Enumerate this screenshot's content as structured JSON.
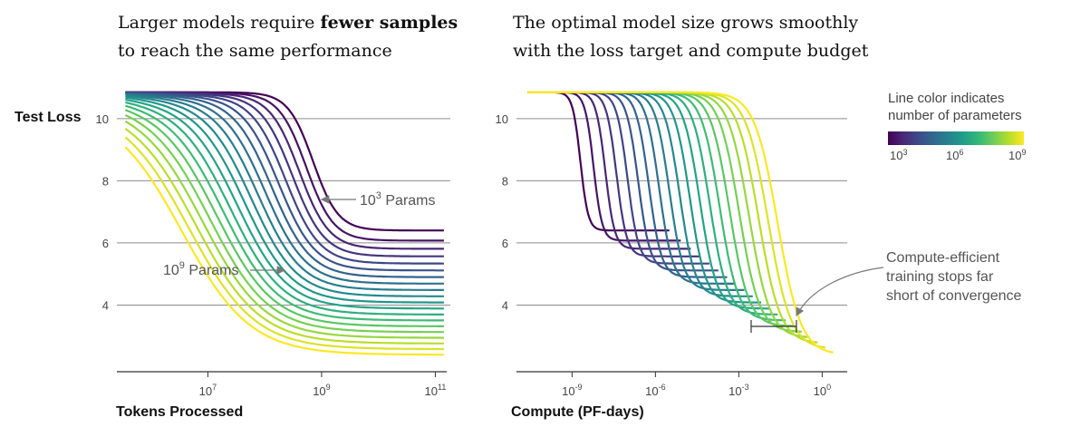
{
  "colors": {
    "viridis": [
      "#440154",
      "#482878",
      "#3e4989",
      "#31688e",
      "#26828e",
      "#1f9e89",
      "#35b779",
      "#6ece58",
      "#b5de2b",
      "#fde725"
    ],
    "grid": "#8c8c8c",
    "annotation": "#777777"
  },
  "legend": {
    "title_line1": "Line color indicates",
    "title_line2": "number of parameters",
    "ticks": [
      {
        "base": "10",
        "exp": "3"
      },
      {
        "base": "10",
        "exp": "6"
      },
      {
        "base": "10",
        "exp": "9"
      }
    ]
  },
  "chart_data": [
    {
      "type": "line",
      "title_line1_pre": "Larger models require ",
      "title_line1_bold": "fewer samples",
      "title_line2": "to reach the same performance",
      "ylabel": "Test Loss",
      "xlabel": "Tokens Processed",
      "x_scale": "log",
      "xlim_log10": [
        5.4,
        11.2
      ],
      "ylim": [
        2.0,
        10.9
      ],
      "yticks": [
        "4",
        "6",
        "8",
        "10"
      ],
      "xticks": [
        {
          "base": "10",
          "exp": "7"
        },
        {
          "base": "10",
          "exp": "9"
        },
        {
          "base": "10",
          "exp": "11"
        }
      ],
      "grid": "horizontal",
      "annotations": [
        {
          "base": "10",
          "exp": "3",
          "suffix": " Params"
        },
        {
          "base": "10",
          "exp": "9",
          "suffix": " Params"
        }
      ],
      "series_count": 20,
      "series_note": "one curve per model size, 10^3 (purple) to 10^9 (yellow) parameters",
      "start_loss": 10.85,
      "final_loss_range": [
        2.4,
        6.4
      ]
    },
    {
      "type": "line",
      "title_line1": "The optimal model size grows smoothly",
      "title_line2": "with the loss target and compute budget",
      "ylabel": "",
      "xlabel": "Compute (PF-days)",
      "x_scale": "log",
      "xlim_log10": [
        -11.0,
        0.9
      ],
      "ylim": [
        2.0,
        10.9
      ],
      "yticks": [
        "4",
        "6",
        "8",
        "10"
      ],
      "xticks": [
        {
          "base": "10",
          "exp": "-9"
        },
        {
          "base": "10",
          "exp": "-6"
        },
        {
          "base": "10",
          "exp": "-3"
        },
        {
          "base": "10",
          "exp": "0"
        }
      ],
      "grid": "horizontal",
      "annotation": [
        "Compute-efficient",
        "training stops far",
        "short of convergence"
      ],
      "series_count": 20,
      "start_loss": 10.85,
      "final_loss_range": [
        2.4,
        6.4
      ]
    }
  ]
}
